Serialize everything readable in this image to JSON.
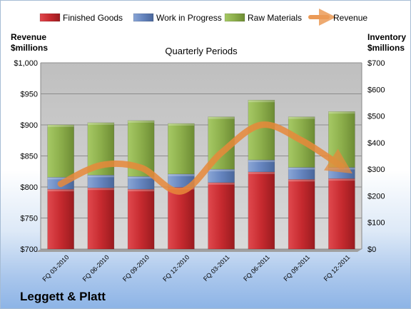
{
  "chart_data": {
    "type": "bar",
    "stacked": true,
    "title": "Quarterly Periods",
    "company": "Leggett & Platt",
    "categories": [
      "FQ 03-2010",
      "FQ 06-2010",
      "FQ 09-2010",
      "FQ 12-2010",
      "FQ 03-2011",
      "FQ 06-2011",
      "FQ 09-2011",
      "FQ 12-2011"
    ],
    "left_axis": {
      "label_line1": "Revenue",
      "label_line2": "$millions",
      "ylim": [
        700,
        1000
      ],
      "ticks": [
        "$700",
        "$750",
        "$800",
        "$850",
        "$900",
        "$950",
        "$1,000"
      ],
      "tick_values": [
        700,
        750,
        800,
        850,
        900,
        950,
        1000
      ]
    },
    "right_axis": {
      "label_line1": "Inventory",
      "label_line2": "$millions",
      "ylim": [
        0,
        700
      ],
      "ticks": [
        "$0",
        "$100",
        "$200",
        "$300",
        "$400",
        "$500",
        "$600",
        "$700"
      ],
      "tick_values": [
        0,
        100,
        200,
        300,
        400,
        500,
        600,
        700
      ]
    },
    "series": [
      {
        "name": "Finished Goods",
        "axis": "right",
        "color": "#c0282d",
        "values": [
          225,
          230,
          225,
          232,
          250,
          290,
          262,
          265
        ]
      },
      {
        "name": "Work in Progress",
        "axis": "right",
        "color": "#5b7db8",
        "values": [
          45,
          48,
          48,
          50,
          50,
          45,
          45,
          42
        ]
      },
      {
        "name": "Raw Materials",
        "axis": "right",
        "color": "#8cb04a",
        "values": [
          197,
          197,
          210,
          190,
          197,
          225,
          190,
          210
        ]
      },
      {
        "name": "Revenue",
        "axis": "left",
        "type": "line",
        "color": "#e8893a",
        "values": [
          805,
          835,
          831,
          793,
          855,
          900,
          875,
          833
        ]
      }
    ],
    "legend_position": "top",
    "grid": true
  }
}
